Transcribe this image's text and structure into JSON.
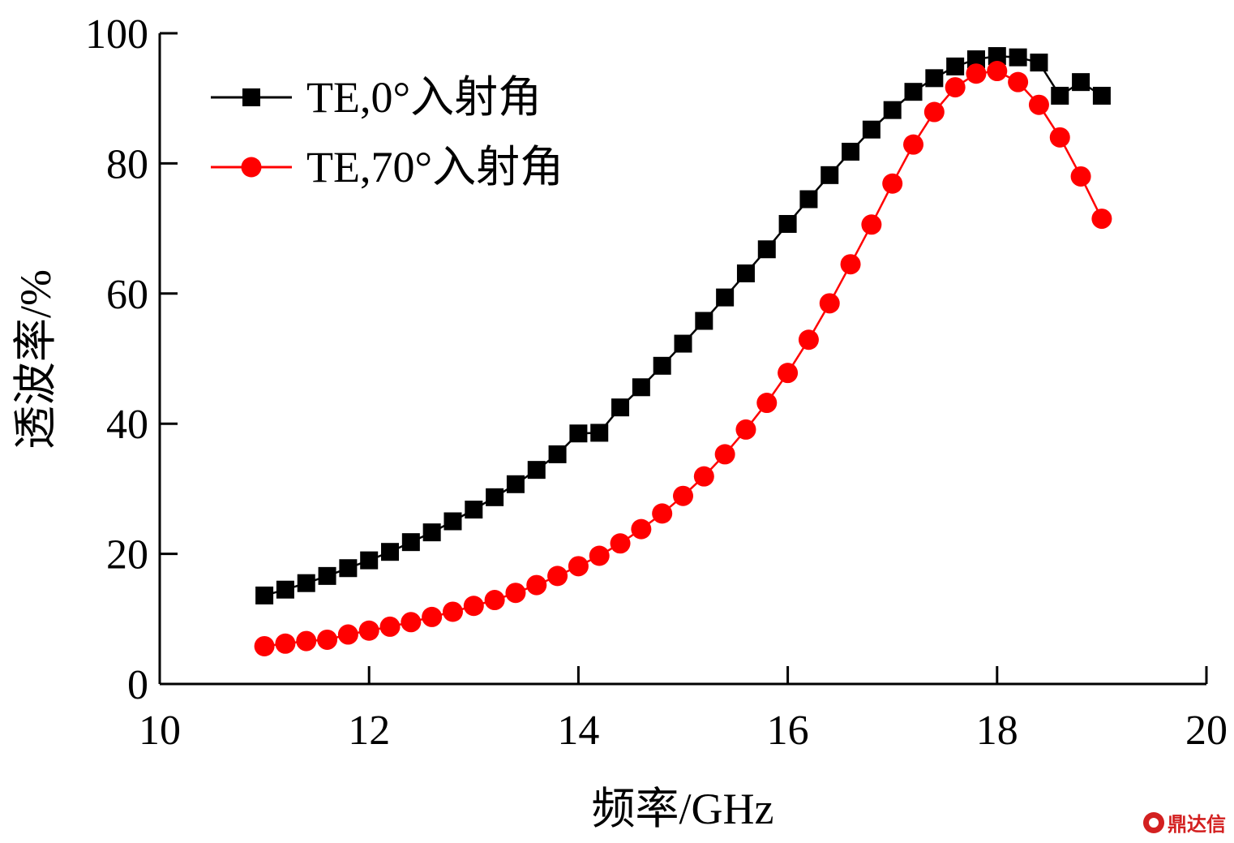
{
  "chart_data": {
    "type": "line",
    "xlabel": "频率/GHz",
    "ylabel": "透波率/%",
    "xlim": [
      10,
      20
    ],
    "ylim": [
      0,
      100
    ],
    "x_ticks": [
      "10",
      "12",
      "14",
      "16",
      "18",
      "20"
    ],
    "y_ticks": [
      "0",
      "20",
      "40",
      "60",
      "80",
      "100"
    ],
    "grid": false,
    "legend_position": "top-left",
    "x": [
      11.0,
      11.2,
      11.4,
      11.6,
      11.8,
      12.0,
      12.2,
      12.4,
      12.6,
      12.8,
      13.0,
      13.2,
      13.4,
      13.6,
      13.8,
      14.0,
      14.2,
      14.4,
      14.6,
      14.8,
      15.0,
      15.2,
      15.4,
      15.6,
      15.8,
      16.0,
      16.2,
      16.4,
      16.6,
      16.8,
      17.0,
      17.2,
      17.4,
      17.6,
      17.8,
      18.0,
      18.2,
      18.4,
      18.6,
      18.8,
      19.0
    ],
    "series": [
      {
        "name": "TE,0°入射角",
        "color": "#000000",
        "marker": "square",
        "values": [
          13.6,
          14.5,
          15.5,
          16.6,
          17.8,
          19.0,
          20.3,
          21.8,
          23.3,
          25.0,
          26.8,
          28.7,
          30.7,
          32.9,
          35.3,
          38.5,
          38.6,
          42.5,
          45.6,
          48.9,
          52.3,
          55.8,
          59.4,
          63.1,
          66.8,
          70.7,
          74.5,
          78.2,
          81.8,
          85.2,
          88.2,
          91.0,
          93.1,
          94.9,
          96.0,
          96.5,
          96.3,
          95.5,
          90.4,
          92.5,
          90.4
        ]
      },
      {
        "name": "TE,70°入射角",
        "color": "#ff0000",
        "marker": "circle",
        "values": [
          5.8,
          6.2,
          6.6,
          6.8,
          7.6,
          8.2,
          8.8,
          9.5,
          10.3,
          11.1,
          12.0,
          12.9,
          14.0,
          15.2,
          16.6,
          18.1,
          19.7,
          21.6,
          23.8,
          26.2,
          28.9,
          31.9,
          35.3,
          39.1,
          43.2,
          47.8,
          52.9,
          58.5,
          64.5,
          70.6,
          76.9,
          82.9,
          87.9,
          91.7,
          93.8,
          94.2,
          92.5,
          89.0,
          84.0,
          78.0,
          71.5
        ]
      }
    ]
  },
  "watermark": {
    "text": "鼎达信"
  }
}
